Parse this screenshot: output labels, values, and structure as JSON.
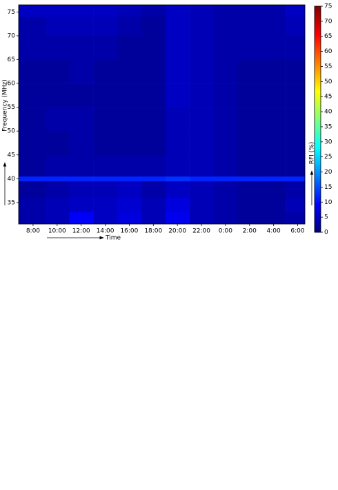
{
  "chart_data": {
    "type": "heatmap",
    "xlabel": "Time",
    "ylabel": "Frequency (MHz)",
    "colorbar_label": "RFI (%)",
    "colormap": "jet",
    "xbins": [
      6.8,
      9,
      11,
      13,
      15,
      17,
      19,
      21,
      23,
      25,
      27,
      29,
      30.6
    ],
    "ybins": [
      30.5,
      33,
      36,
      39.5,
      40.5,
      45,
      50,
      55,
      60,
      65,
      70,
      74,
      76.5
    ],
    "values": [
      [
        3,
        4,
        9,
        5,
        7,
        4,
        8,
        4,
        3,
        2,
        2,
        3
      ],
      [
        3,
        4,
        5,
        5,
        6,
        4,
        7,
        4,
        3,
        2,
        2,
        4
      ],
      [
        2,
        3,
        4,
        4,
        5,
        3,
        5,
        4,
        3,
        2,
        2,
        3
      ],
      [
        12,
        12,
        12,
        12,
        12,
        12,
        13,
        12,
        12,
        12,
        12,
        12
      ],
      [
        2,
        3,
        3,
        3,
        3,
        3,
        4,
        4,
        3,
        2,
        2,
        2
      ],
      [
        2,
        2,
        3,
        2,
        2,
        2,
        4,
        4,
        3,
        2,
        2,
        2
      ],
      [
        2,
        3,
        3,
        2,
        2,
        2,
        4,
        4,
        3,
        2,
        2,
        2
      ],
      [
        2,
        2,
        2,
        2,
        2,
        2,
        5,
        4,
        3,
        2,
        2,
        2
      ],
      [
        2,
        2,
        3,
        2,
        2,
        2,
        5,
        4,
        3,
        2,
        2,
        2
      ],
      [
        3,
        3,
        3,
        3,
        2,
        2,
        5,
        4,
        3,
        3,
        3,
        3
      ],
      [
        3,
        4,
        4,
        4,
        3,
        2,
        5,
        4,
        3,
        3,
        3,
        4
      ],
      [
        5,
        5,
        5,
        5,
        4,
        3,
        5,
        4,
        3,
        3,
        3,
        5
      ]
    ],
    "xlim": [
      6.8,
      30.6
    ],
    "xticks": [
      {
        "value": 8,
        "label": "8:00"
      },
      {
        "value": 10,
        "label": "10:00"
      },
      {
        "value": 12,
        "label": "12:00"
      },
      {
        "value": 14,
        "label": "14:00"
      },
      {
        "value": 16,
        "label": "16:00"
      },
      {
        "value": 18,
        "label": "18:00"
      },
      {
        "value": 20,
        "label": "20:00"
      },
      {
        "value": 22,
        "label": "22:00"
      },
      {
        "value": 24,
        "label": "0:00"
      },
      {
        "value": 26,
        "label": "2:00"
      },
      {
        "value": 28,
        "label": "4:00"
      },
      {
        "value": 30,
        "label": "6:00"
      }
    ],
    "ylim": [
      30.5,
      76.5
    ],
    "yticks": [
      35,
      40,
      45,
      50,
      55,
      60,
      65,
      70,
      75
    ],
    "clim": [
      0,
      75
    ],
    "cticks": [
      0,
      5,
      10,
      15,
      20,
      25,
      30,
      35,
      40,
      45,
      50,
      55,
      60,
      65,
      70,
      75
    ]
  }
}
